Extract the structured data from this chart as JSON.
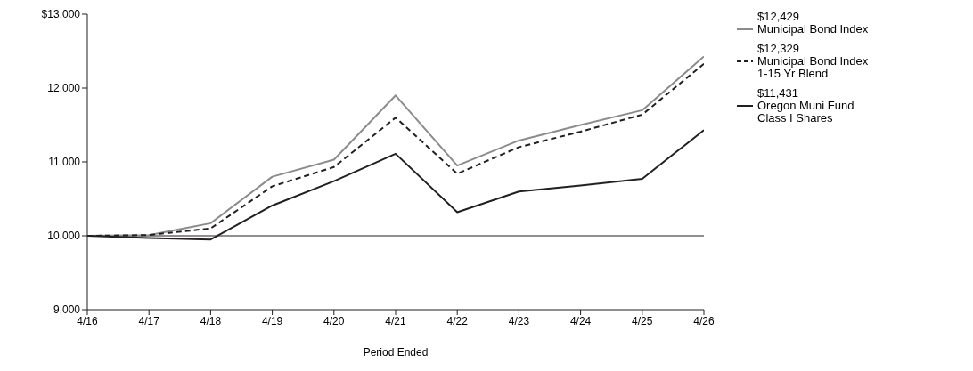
{
  "chart_data": {
    "type": "line",
    "xlabel": "Period Ended",
    "categories": [
      "4/16",
      "4/17",
      "4/18",
      "4/19",
      "4/20",
      "4/21",
      "4/22",
      "4/23",
      "4/24",
      "4/25",
      "4/26"
    ],
    "series": [
      {
        "name": "Municipal Bond Index",
        "color": "#8c8c8c",
        "line_style": "solid",
        "values": [
          10000,
          10010,
          10170,
          10800,
          11030,
          11900,
          10950,
          11290,
          11500,
          11700,
          12429
        ]
      },
      {
        "name": "Municipal Bond Index\n1-15 Yr Blend",
        "color": "#231f20",
        "line_style": "dashed",
        "values": [
          10000,
          10010,
          10100,
          10670,
          10930,
          11600,
          10840,
          11200,
          11410,
          11640,
          12329
        ]
      },
      {
        "name": "Oregon Muni Fund\nClass I Shares",
        "color": "#231f20",
        "line_style": "solid",
        "values": [
          10000,
          9970,
          9950,
          10410,
          10740,
          11110,
          10320,
          10600,
          10680,
          10770,
          11431
        ]
      }
    ],
    "annotations": [
      "$12,429",
      "$12,329",
      "$11,431"
    ],
    "ylim": [
      9000,
      13000
    ],
    "yticks": [
      {
        "value": 9000,
        "label": "9,000"
      },
      {
        "value": 10000,
        "label": "10,000"
      },
      {
        "value": 11000,
        "label": "11,000"
      },
      {
        "value": 12000,
        "label": "12,000"
      },
      {
        "value": 13000,
        "label": "$13,000"
      }
    ],
    "ref_lines": [
      {
        "axis": "y",
        "value": 10000,
        "color": "#231f20"
      }
    ],
    "grid": false,
    "legend": "top right",
    "marker": "none"
  }
}
